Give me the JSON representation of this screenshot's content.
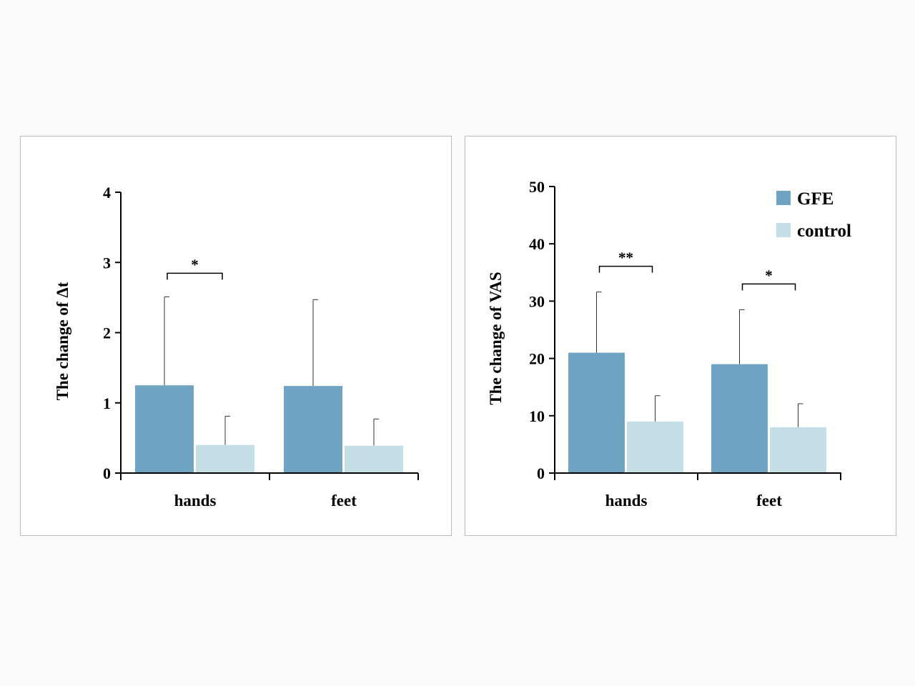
{
  "chart_data": [
    {
      "type": "bar",
      "ylabel": "The change of Δt",
      "categories": [
        "hands",
        "feet"
      ],
      "ylim": [
        0,
        4
      ],
      "yticks": [
        0,
        1,
        2,
        3,
        4
      ],
      "series": [
        {
          "values": [
            1.25,
            1.24
          ],
          "error": [
            1.26,
            1.23
          ]
        },
        {
          "values": [
            0.4,
            0.39
          ],
          "error": [
            0.41,
            0.38
          ]
        }
      ],
      "significance": [
        {
          "category": "hands",
          "label": "*"
        }
      ],
      "grid": false
    },
    {
      "type": "bar",
      "ylabel": "The change of  VAS",
      "categories": [
        "hands",
        "feet"
      ],
      "ylim": [
        0,
        50
      ],
      "yticks": [
        0,
        10,
        20,
        30,
        40,
        50
      ],
      "series": [
        {
          "name": "GFE",
          "values": [
            21,
            19
          ],
          "error": [
            10.6,
            9.5
          ]
        },
        {
          "name": "control",
          "values": [
            9,
            8
          ],
          "error": [
            4.5,
            4.1
          ]
        }
      ],
      "significance": [
        {
          "category": "hands",
          "label": "**"
        },
        {
          "category": "feet",
          "label": "*"
        }
      ],
      "legend": "top-right",
      "grid": false
    }
  ],
  "colors": {
    "gfe": "#6fa4c2",
    "control": "#c4e0e6",
    "axis": "#000000"
  }
}
